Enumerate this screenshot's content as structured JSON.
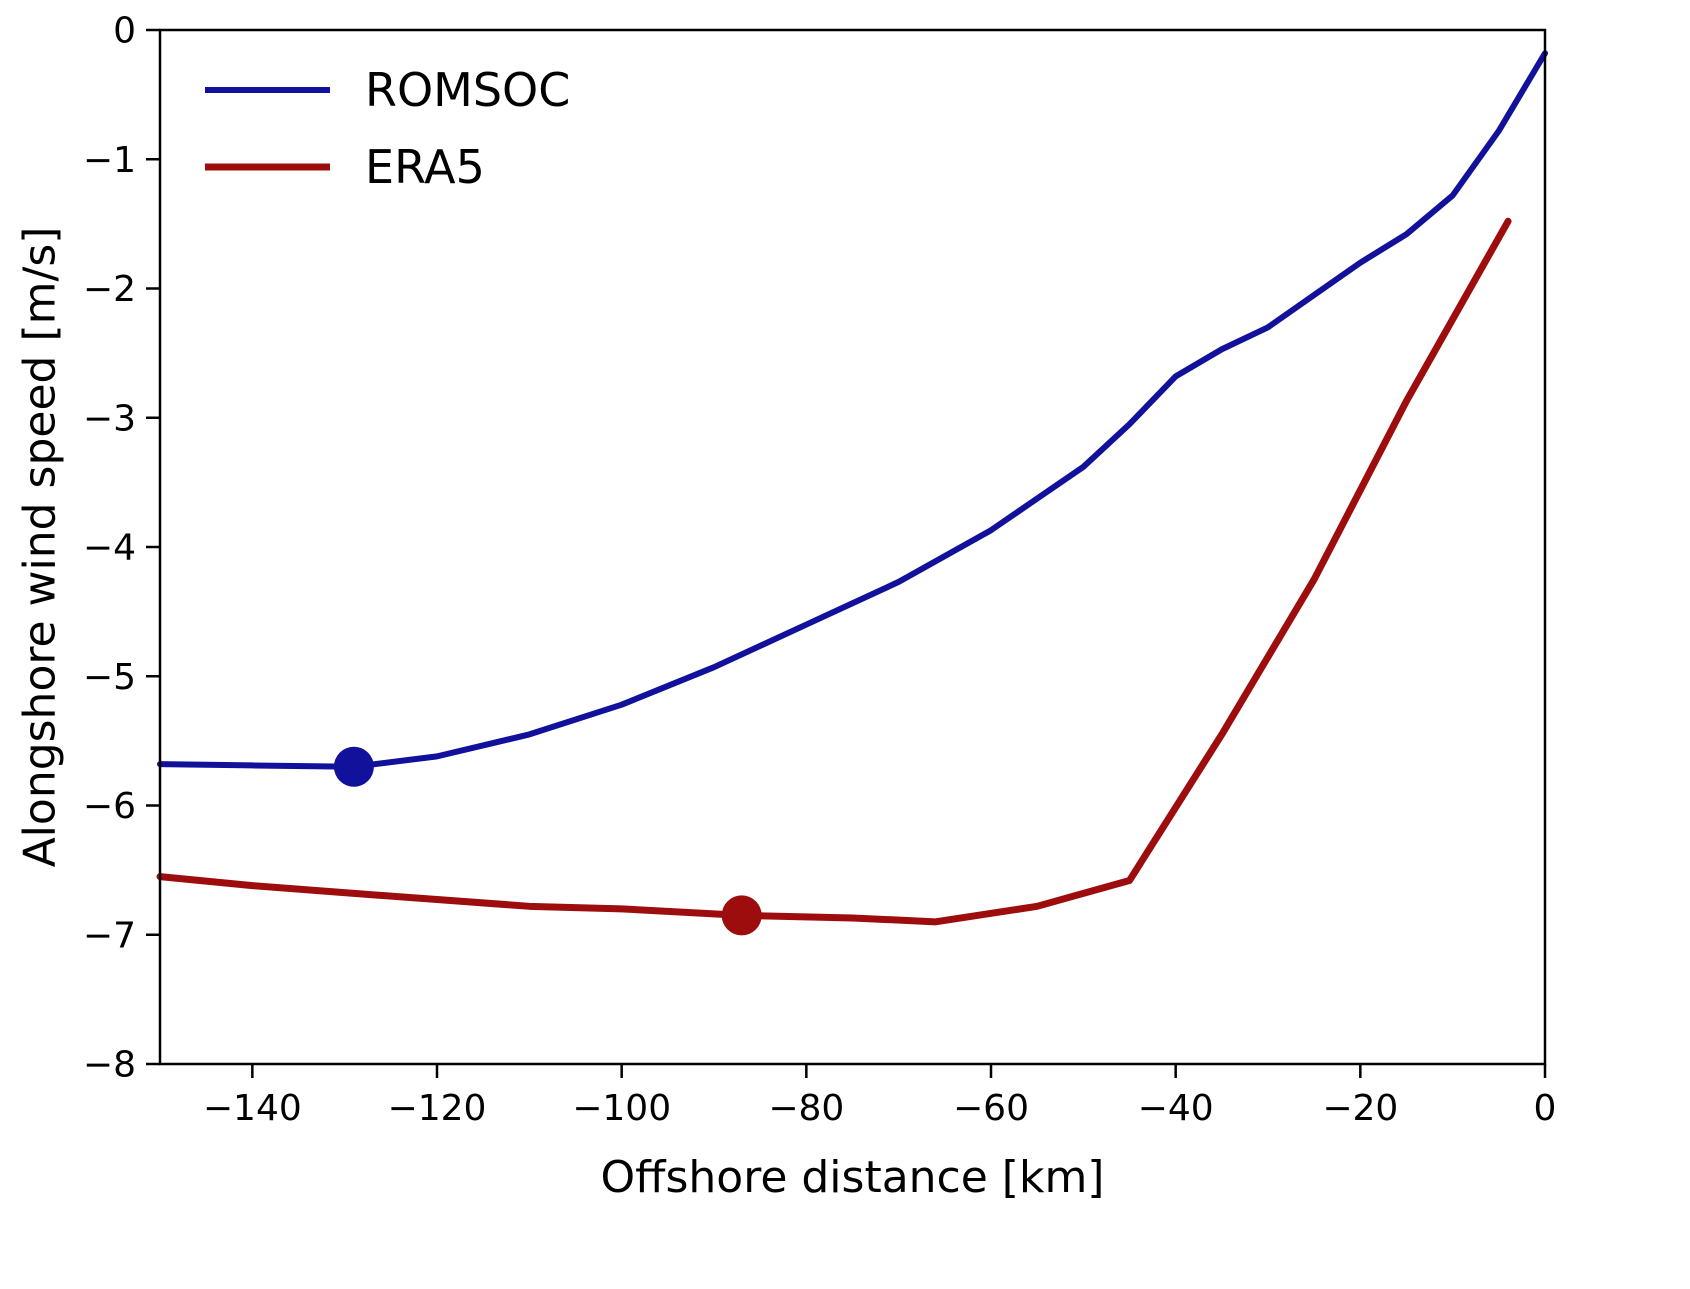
{
  "figure": {
    "background": "#ffffff",
    "axis_color": "#000000",
    "tick_font_size": 36,
    "legend_font_size": 46
  },
  "chart_data": {
    "type": "line",
    "title": "",
    "xlabel": "Offshore distance [km]",
    "ylabel": "Alongshore wind speed [m/s]",
    "xlim": [
      -150,
      0
    ],
    "ylim": [
      -8,
      0
    ],
    "grid": false,
    "xticks": {
      "values": [
        -140,
        -120,
        -100,
        -80,
        -60,
        -40,
        -20,
        0
      ],
      "labels": [
        "−140",
        "−120",
        "−100",
        "−80",
        "−60",
        "−40",
        "−20",
        "0"
      ]
    },
    "yticks": {
      "values": [
        0,
        -1,
        -2,
        -3,
        -4,
        -5,
        -6,
        -7,
        -8
      ],
      "labels": [
        "0",
        "−1",
        "−2",
        "−3",
        "−4",
        "−5",
        "−6",
        "−7",
        "−8"
      ]
    },
    "legend": {
      "position": "upper left",
      "entries": [
        "ROMSOC",
        "ERA5"
      ]
    },
    "series": [
      {
        "name": "ROMSOC",
        "color": "#11119b",
        "linewidth": 6,
        "x": [
          -150,
          -140,
          -129,
          -120,
          -110,
          -100,
          -90,
          -80,
          -70,
          -60,
          -50,
          -45,
          -40,
          -35,
          -30,
          -25,
          -20,
          -15,
          -10,
          -5,
          0
        ],
        "y": [
          -5.68,
          -5.69,
          -5.7,
          -5.62,
          -5.45,
          -5.22,
          -4.93,
          -4.6,
          -4.27,
          -3.87,
          -3.38,
          -3.05,
          -2.68,
          -2.47,
          -2.3,
          -2.05,
          -1.8,
          -1.58,
          -1.28,
          -0.78,
          -0.18
        ],
        "marker": {
          "x": -129,
          "y": -5.7,
          "radius": 20
        }
      },
      {
        "name": "ERA5",
        "color": "#9e0d0d",
        "linewidth": 7,
        "x": [
          -150,
          -140,
          -129,
          -110,
          -100,
          -87,
          -75,
          -66,
          -55,
          -45,
          -35,
          -25,
          -15,
          -4
        ],
        "y": [
          -6.55,
          -6.62,
          -6.68,
          -6.78,
          -6.8,
          -6.85,
          -6.87,
          -6.9,
          -6.78,
          -6.58,
          -5.45,
          -4.25,
          -2.87,
          -1.48
        ],
        "marker": {
          "x": -87,
          "y": -6.85,
          "radius": 20
        }
      }
    ]
  }
}
